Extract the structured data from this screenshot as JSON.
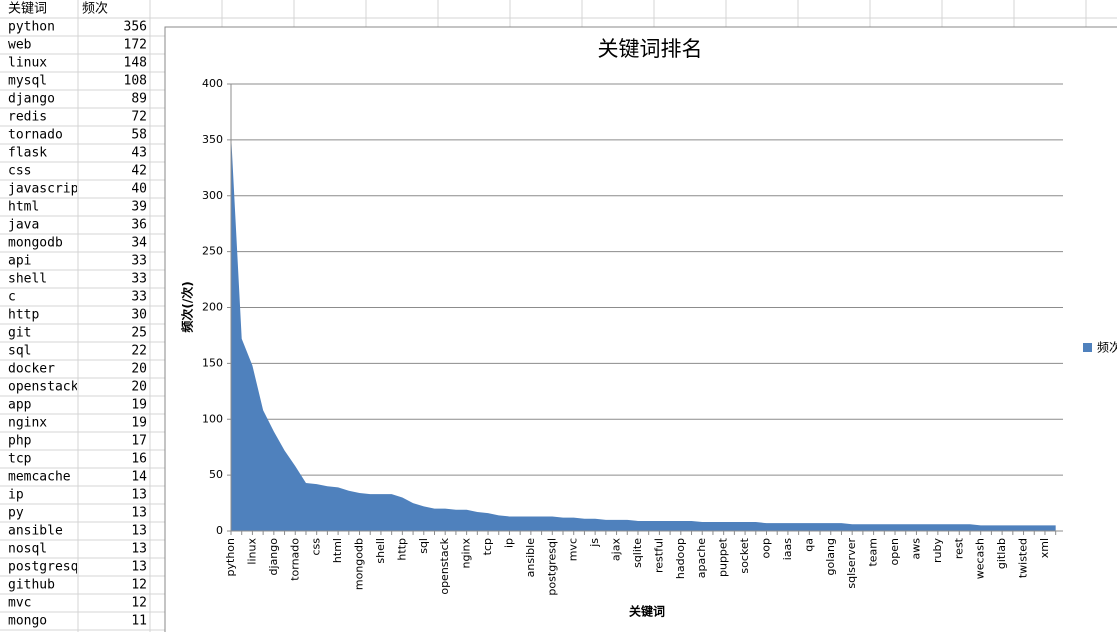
{
  "table": {
    "header": [
      "关键词",
      "频次"
    ],
    "rows": [
      [
        "python",
        356
      ],
      [
        "web",
        172
      ],
      [
        "linux",
        148
      ],
      [
        "mysql",
        108
      ],
      [
        "django",
        89
      ],
      [
        "redis",
        72
      ],
      [
        "tornado",
        58
      ],
      [
        "flask",
        43
      ],
      [
        "css",
        42
      ],
      [
        "javascript",
        40
      ],
      [
        "html",
        39
      ],
      [
        "java",
        36
      ],
      [
        "mongodb",
        34
      ],
      [
        "api",
        33
      ],
      [
        "shell",
        33
      ],
      [
        "c",
        33
      ],
      [
        "http",
        30
      ],
      [
        "git",
        25
      ],
      [
        "sql",
        22
      ],
      [
        "docker",
        20
      ],
      [
        "openstack",
        20
      ],
      [
        "app",
        19
      ],
      [
        "nginx",
        19
      ],
      [
        "php",
        17
      ],
      [
        "tcp",
        16
      ],
      [
        "memcache",
        14
      ],
      [
        "ip",
        13
      ],
      [
        "py",
        13
      ],
      [
        "ansible",
        13
      ],
      [
        "nosql",
        13
      ],
      [
        "postgresql",
        13
      ],
      [
        "github",
        12
      ],
      [
        "mvc",
        12
      ],
      [
        "mongo",
        11
      ]
    ]
  },
  "chart_data": {
    "type": "area",
    "title": "关键词排名",
    "x_label": "关键词",
    "y_label": "频次(/次)",
    "categories": [
      "python",
      null,
      "linux",
      null,
      "django",
      null,
      "tornado",
      null,
      "css",
      null,
      "html",
      null,
      "mongodb",
      null,
      "shell",
      null,
      "http",
      null,
      "sql",
      null,
      "openstack",
      null,
      "nginx",
      null,
      "tcp",
      null,
      "ip",
      null,
      "ansible",
      null,
      "postgresql",
      null,
      "mvc",
      null,
      "js",
      null,
      "ajax",
      null,
      "sqlite",
      null,
      "restful",
      null,
      "hadoop",
      null,
      "apache",
      null,
      "puppet",
      null,
      "socket",
      null,
      "oop",
      null,
      "iaas",
      null,
      "qa",
      null,
      "golang",
      null,
      "sqlserver",
      null,
      "team",
      null,
      "open",
      null,
      "aws",
      null,
      "ruby",
      null,
      "rest",
      null,
      "wecash",
      null,
      "gitlab",
      null,
      "twisted",
      null,
      "xml",
      null
    ],
    "series": [
      {
        "name": "频次",
        "color": "#4f81bd",
        "values": [
          356,
          172,
          148,
          108,
          89,
          72,
          58,
          43,
          42,
          40,
          39,
          36,
          34,
          33,
          33,
          33,
          30,
          25,
          22,
          20,
          20,
          19,
          19,
          17,
          16,
          14,
          13,
          13,
          13,
          13,
          13,
          12,
          12,
          11,
          11,
          10,
          10,
          10,
          9,
          9,
          9,
          9,
          9,
          9,
          8,
          8,
          8,
          8,
          8,
          8,
          7,
          7,
          7,
          7,
          7,
          7,
          7,
          7,
          6,
          6,
          6,
          6,
          6,
          6,
          6,
          6,
          6,
          6,
          6,
          6,
          5,
          5,
          5,
          5,
          5,
          5,
          5,
          5
        ]
      }
    ],
    "ylim": [
      0,
      400
    ],
    "yticks": [
      0,
      50,
      100,
      150,
      200,
      250,
      300,
      350,
      400
    ],
    "grid": true,
    "legend": "right"
  }
}
